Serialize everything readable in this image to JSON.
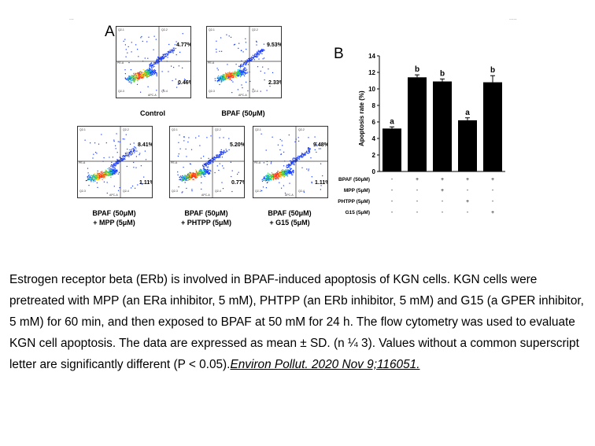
{
  "figure": {
    "panel_a_label": "A",
    "panel_b_label": "B",
    "corner_marks": [
      "...",
      "....."
    ],
    "quadrant_labels": {
      "ul": "Q2-1",
      "ur": "Q2-2",
      "ll": "Q2-3",
      "lr": "Q2-4"
    },
    "axis_labels": {
      "x": "APC-A",
      "y": "PE-A"
    },
    "flow_plots": [
      {
        "caption_lines": [
          "Control"
        ],
        "upper_right_pct": "4.77%",
        "lower_right_pct": "0.46%"
      },
      {
        "caption_lines": [
          "BPAF (50μM)"
        ],
        "upper_right_pct": "9.53%",
        "lower_right_pct": "2.33%"
      },
      {
        "caption_lines": [
          "BPAF (50μM)",
          "+ MPP (5μM)"
        ],
        "upper_right_pct": "8.41%",
        "lower_right_pct": "1.11%"
      },
      {
        "caption_lines": [
          "BPAF (50μM)",
          "+ PHTPP (5μM)"
        ],
        "upper_right_pct": "5.20%",
        "lower_right_pct": "0.77%"
      },
      {
        "caption_lines": [
          "BPAF (50μM)",
          "+ G15 (5μM)"
        ],
        "upper_right_pct": "9.48%",
        "lower_right_pct": "1.11%"
      }
    ]
  },
  "chart_data": {
    "type": "bar",
    "title": "",
    "ylabel": "Apoptosis rate (%)",
    "xlabel": "",
    "ylim": [
      0,
      14
    ],
    "yticks": [
      0,
      2,
      4,
      6,
      8,
      10,
      12,
      14
    ],
    "categories": [
      "1",
      "2",
      "3",
      "4",
      "5"
    ],
    "values": [
      5.2,
      11.4,
      10.9,
      6.2,
      10.8
    ],
    "errors": [
      0.2,
      0.3,
      0.3,
      0.3,
      0.8
    ],
    "significance_letters": [
      "a",
      "b",
      "b",
      "a",
      "b"
    ],
    "bar_color": "#000000",
    "treatment_table": [
      {
        "label": "BPAF (50μM)",
        "signs": [
          "-",
          "+",
          "+",
          "+",
          "+"
        ]
      },
      {
        "label": "MPP (5μM)",
        "signs": [
          "-",
          "-",
          "+",
          "-",
          "-"
        ]
      },
      {
        "label": "PHTPP (5μM)",
        "signs": [
          "-",
          "-",
          "-",
          "+",
          "-"
        ]
      },
      {
        "label": "G15 (5μM)",
        "signs": [
          "-",
          "-",
          "-",
          "-",
          "+"
        ]
      }
    ]
  },
  "caption": {
    "text": "Estrogen receptor beta (ERb) is involved in BPAF-induced apoptosis of KGN cells. KGN cells were pretreated with MPP (an ERa inhibitor, 5 mM), PHTPP (an ERb inhibitor, 5 mM) and G15 (a GPER inhibitor, 5 mM) for 60 min, and then exposed to BPAF at 50 mM for 24 h. The flow cytometry was used to evaluate KGN cell apoptosis. The data are expressed as mean ± SD. (n ¼ 3). Values without a common superscript letter are significantly different (P < 0.05).",
    "citation": "Environ Pollut. 2020 Nov 9;116051."
  }
}
